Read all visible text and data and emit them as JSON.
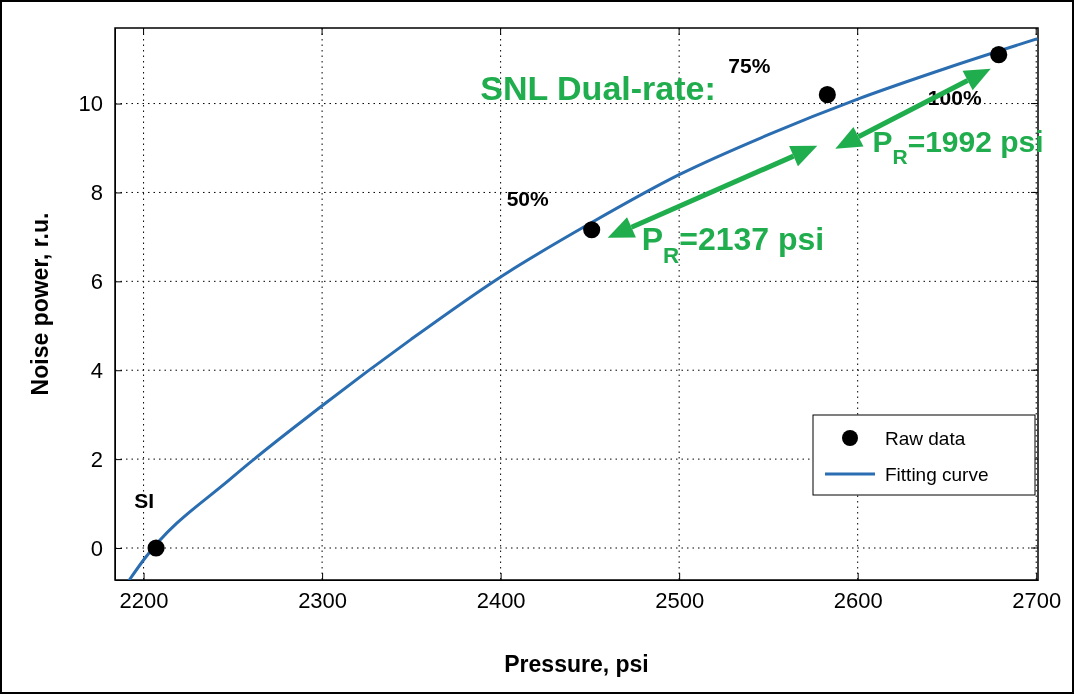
{
  "chart_data": {
    "type": "scatter",
    "xlabel": "Pressure, psi",
    "ylabel": "Noise power, r.u.",
    "xlim": [
      2184,
      2701
    ],
    "ylim": [
      -0.72,
      11.7
    ],
    "xticks": [
      2200,
      2300,
      2400,
      2500,
      2600,
      2700
    ],
    "yticks": [
      0,
      2,
      4,
      6,
      8,
      10
    ],
    "grid": true,
    "legend": "bottom right",
    "series": [
      {
        "name": "Raw data",
        "marker": "circle",
        "color": "#000000",
        "x": [
          2207,
          2451,
          2583,
          2679
        ],
        "values": [
          0,
          7.16,
          10.2,
          11.1
        ]
      },
      {
        "name": "Fitting curve",
        "type": "line",
        "line_style": "solid",
        "color": "#2a6db0",
        "x": [
          2192,
          2200,
          2250,
          2300,
          2350,
          2400,
          2450,
          2500,
          2550,
          2600,
          2650,
          2700
        ],
        "values": [
          -0.72,
          -0.27,
          1.6,
          3.2,
          4.7,
          6.1,
          7.3,
          8.4,
          9.3,
          10.1,
          10.8,
          11.45
        ]
      }
    ],
    "annotations": [
      {
        "text": "SI",
        "x": 2207,
        "y": 0
      },
      {
        "text": "50%",
        "x": 2451,
        "y": 7.16
      },
      {
        "text": "75%",
        "x": 2583,
        "y": 10.2
      },
      {
        "text": "100%",
        "x": 2679,
        "y": 11.1
      },
      "SNL Dual-rate:",
      "P$_{R}$=2137 psi",
      "P$_{R}$=1992 psi"
    ]
  }
}
